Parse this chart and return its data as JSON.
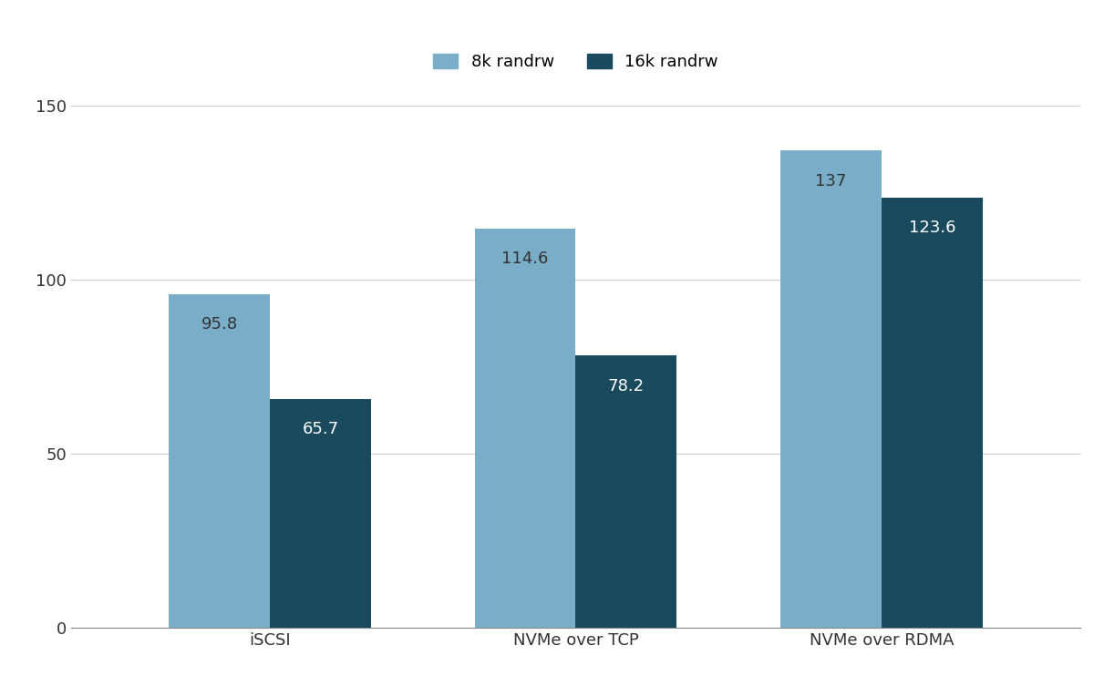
{
  "categories": [
    "iSCSI",
    "NVMe over TCP",
    "NVMe over RDMA"
  ],
  "series": [
    {
      "name": "8k randrw",
      "values": [
        95.8,
        114.6,
        137
      ],
      "color": "#7aaec8",
      "label_color": "#333333"
    },
    {
      "name": "16k randrw",
      "values": [
        65.7,
        78.2,
        123.6
      ],
      "color": "#1a4a5e",
      "label_color": "#ffffff"
    }
  ],
  "ylim": [
    0,
    160
  ],
  "yticks": [
    0,
    50,
    100,
    150
  ],
  "bar_width": 0.33,
  "background_color": "#ffffff",
  "grid_color": "#cccccc",
  "tick_fontsize": 13,
  "legend_fontsize": 13,
  "value_fontsize": 13
}
